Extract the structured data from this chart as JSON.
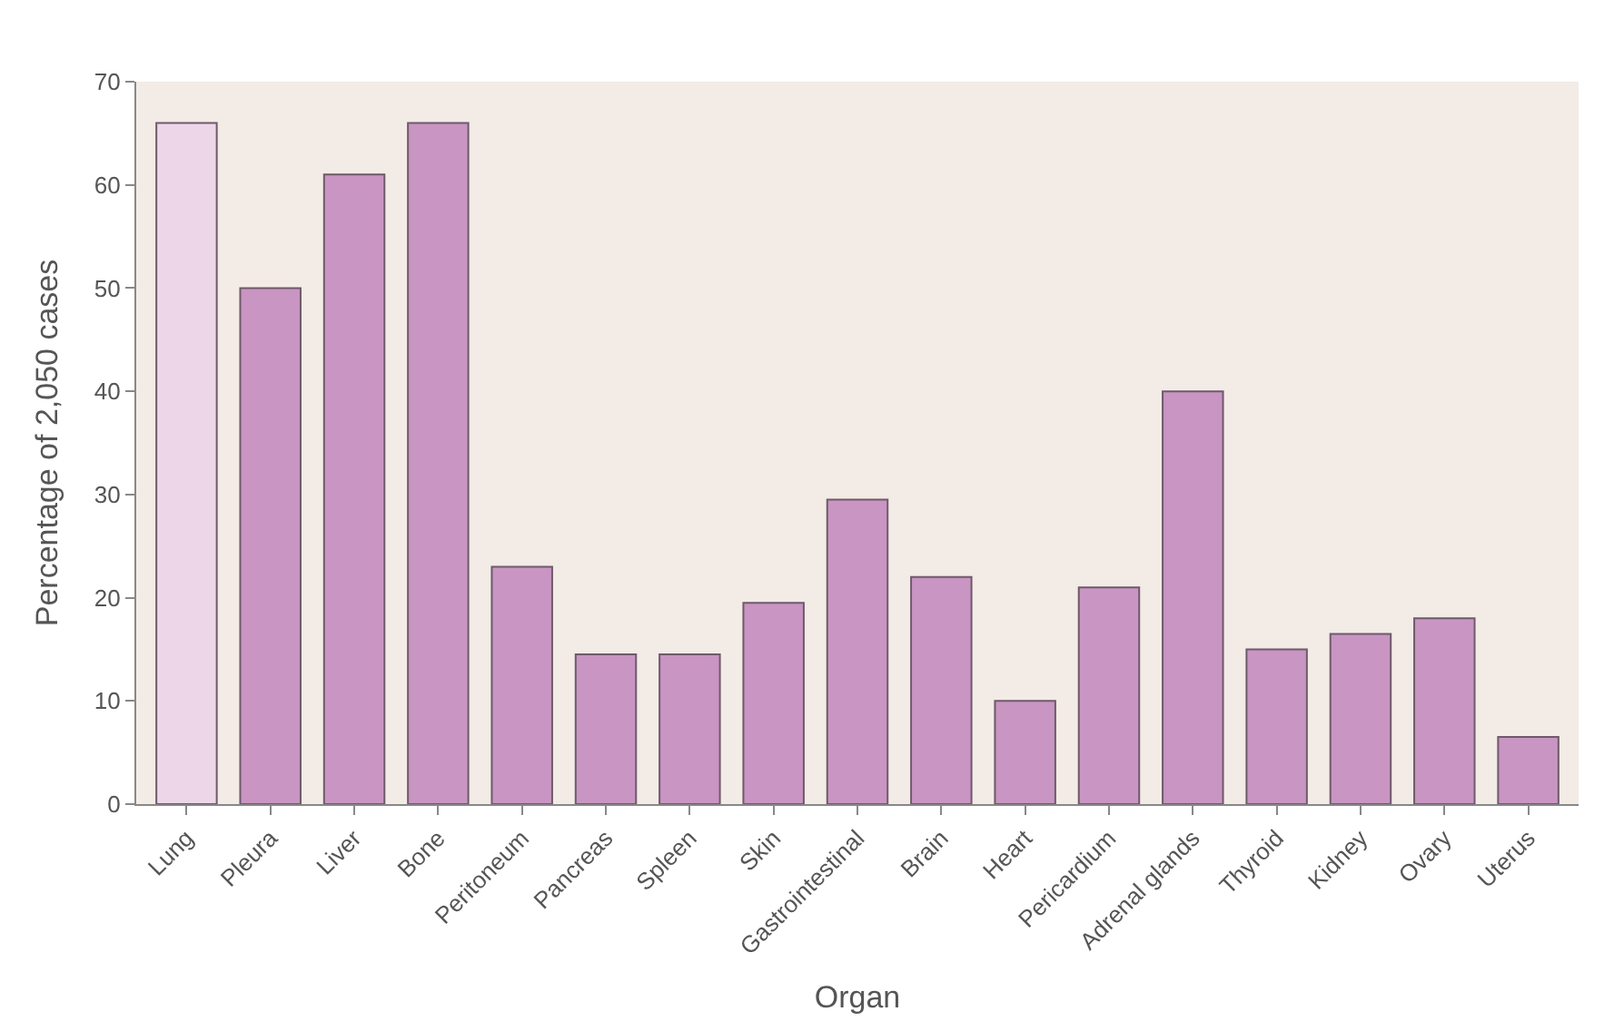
{
  "chart_data": {
    "type": "bar",
    "xlabel": "Organ",
    "ylabel": "Percentage of 2,050 cases",
    "categories": [
      "Lung",
      "Pleura",
      "Liver",
      "Bone",
      "Peritoneum",
      "Pancreas",
      "Spleen",
      "Skin",
      "Gastrointestinal",
      "Brain",
      "Heart",
      "Pericardium",
      "Adrenal glands",
      "Thyroid",
      "Kidney",
      "Ovary",
      "Uterus"
    ],
    "values": [
      66,
      50,
      61,
      66,
      23,
      14.5,
      14.5,
      19.5,
      29.5,
      22,
      10,
      21,
      40,
      15,
      16.5,
      18,
      6.5
    ],
    "colors": [
      "#ecd6e8",
      "#c995c2",
      "#c995c2",
      "#c995c2",
      "#c995c2",
      "#c995c2",
      "#c995c2",
      "#c995c2",
      "#c995c2",
      "#c995c2",
      "#c995c2",
      "#c995c2",
      "#c995c2",
      "#c995c2",
      "#c995c2",
      "#c995c2",
      "#c995c2"
    ],
    "ylim": [
      0,
      70
    ],
    "yticks": [
      0,
      10,
      20,
      30,
      40,
      50,
      60,
      70
    ],
    "grid": false,
    "legend": false
  }
}
